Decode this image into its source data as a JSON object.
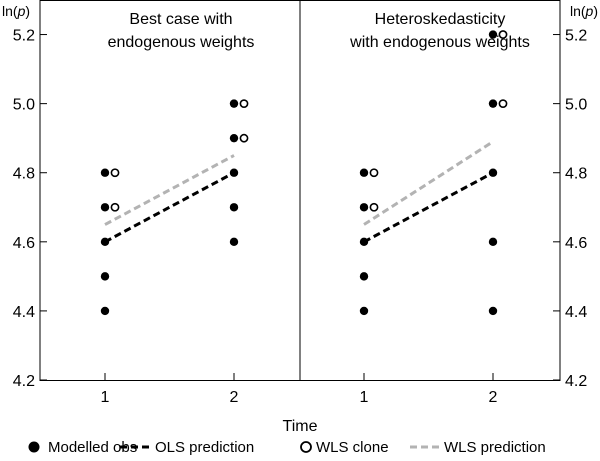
{
  "chart_data": {
    "type": "scatter",
    "xlabel": "Time",
    "ylabel": "ln(p)",
    "ylabel_parts": {
      "prefix": "ln(",
      "var": "p",
      "suffix": ")"
    },
    "ylim": [
      4.2,
      5.3
    ],
    "y_ticks": [
      4.2,
      4.4,
      4.6,
      4.8,
      5.0,
      5.2
    ],
    "y_tick_labels": [
      "4.2",
      "4.4",
      "4.6",
      "4.8",
      "5.0",
      "5.2"
    ],
    "x_ticks": [
      1,
      2
    ],
    "x_tick_labels": [
      "1",
      "2"
    ],
    "colors": {
      "modelled": "#000000",
      "ols": "#000000",
      "wls_line": "#b3b3b3",
      "frame": "#000000"
    },
    "panels": [
      {
        "id": "best-case",
        "title_lines": [
          "Best case with",
          "endogenous weights"
        ],
        "modelled_obs": [
          {
            "x": 1,
            "y": 4.4
          },
          {
            "x": 1,
            "y": 4.5
          },
          {
            "x": 1,
            "y": 4.6
          },
          {
            "x": 1,
            "y": 4.7
          },
          {
            "x": 1,
            "y": 4.8
          },
          {
            "x": 2,
            "y": 4.6
          },
          {
            "x": 2,
            "y": 4.7
          },
          {
            "x": 2,
            "y": 4.8
          },
          {
            "x": 2,
            "y": 4.9
          },
          {
            "x": 2,
            "y": 5.0
          }
        ],
        "wls_clone": [
          {
            "x": 1,
            "y": 4.7
          },
          {
            "x": 1,
            "y": 4.8
          },
          {
            "x": 2,
            "y": 4.9
          },
          {
            "x": 2,
            "y": 5.0
          }
        ],
        "ols_prediction": [
          {
            "x": 1,
            "y": 4.6
          },
          {
            "x": 2,
            "y": 4.8
          }
        ],
        "wls_prediction": [
          {
            "x": 1,
            "y": 4.65
          },
          {
            "x": 2,
            "y": 4.85
          }
        ]
      },
      {
        "id": "heteroskedasticity",
        "title_lines": [
          "Heteroskedasticity",
          "with endogenous weights"
        ],
        "modelled_obs": [
          {
            "x": 1,
            "y": 4.4
          },
          {
            "x": 1,
            "y": 4.5
          },
          {
            "x": 1,
            "y": 4.6
          },
          {
            "x": 1,
            "y": 4.7
          },
          {
            "x": 1,
            "y": 4.8
          },
          {
            "x": 2,
            "y": 4.4
          },
          {
            "x": 2,
            "y": 4.6
          },
          {
            "x": 2,
            "y": 4.8
          },
          {
            "x": 2,
            "y": 5.0
          },
          {
            "x": 2,
            "y": 5.2
          }
        ],
        "wls_clone": [
          {
            "x": 1,
            "y": 4.7
          },
          {
            "x": 1,
            "y": 4.8
          },
          {
            "x": 2,
            "y": 5.0
          },
          {
            "x": 2,
            "y": 5.2
          }
        ],
        "ols_prediction": [
          {
            "x": 1,
            "y": 4.6
          },
          {
            "x": 2,
            "y": 4.8
          }
        ],
        "wls_prediction": [
          {
            "x": 1,
            "y": 4.65
          },
          {
            "x": 2,
            "y": 4.89
          }
        ]
      }
    ],
    "legend": [
      {
        "key": "modelled",
        "marker": "filled-circle",
        "label": "Modelled obs"
      },
      {
        "key": "ols",
        "marker": "dashed-line-black",
        "label": "OLS prediction"
      },
      {
        "key": "wls_clone",
        "marker": "open-circle",
        "label": "WLS clone"
      },
      {
        "key": "wls_line",
        "marker": "dashed-line-grey",
        "label": "WLS prediction"
      }
    ],
    "legend_position": "bottom"
  }
}
